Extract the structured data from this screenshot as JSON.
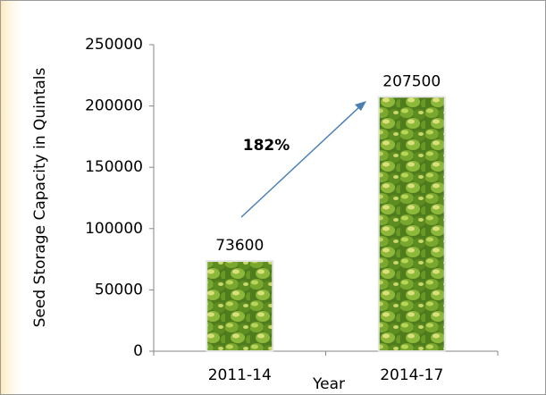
{
  "chart_data": {
    "type": "bar",
    "y_label": "Seed Storage Capacity in Quintals",
    "x_label": "Year",
    "annotation": "182%",
    "categories": [
      "2011-14",
      "2014-17"
    ],
    "values": [
      73600,
      207500
    ],
    "color": "#4f7d1e",
    "ylim": [
      0,
      250000
    ],
    "yticks": [
      0,
      50000,
      100000,
      150000,
      200000,
      250000
    ]
  }
}
